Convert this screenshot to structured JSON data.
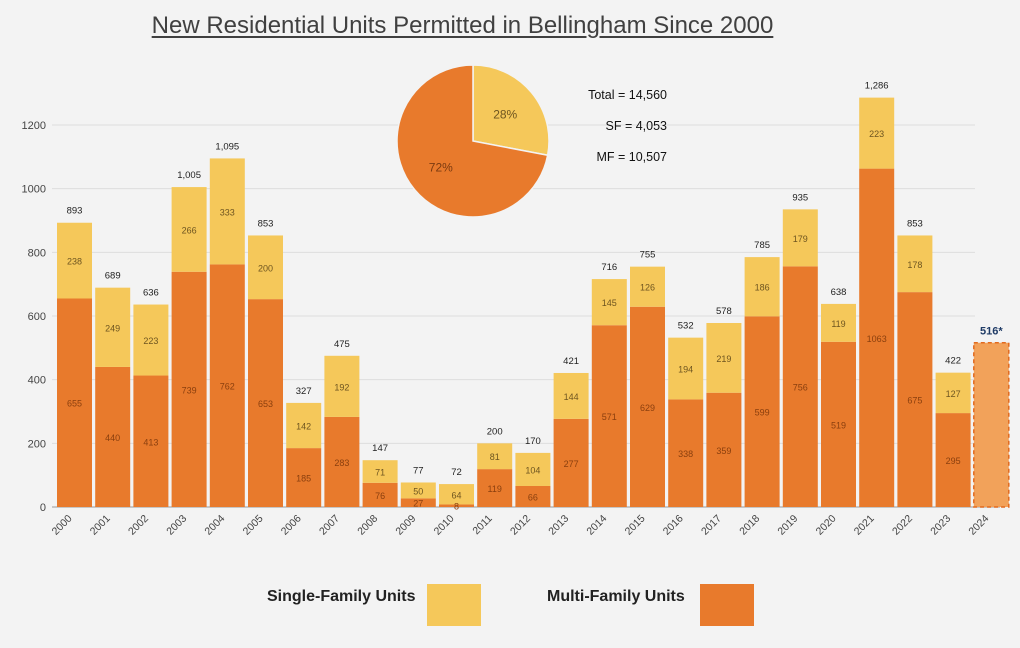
{
  "title": "New Residential Units Permitted in Bellingham Since 2000",
  "stats": {
    "total": "Total = 14,560",
    "sf": "SF = 4,053",
    "mf": "MF = 10,507"
  },
  "legend": {
    "sf_label": "Single-Family Units",
    "mf_label": "Multi-Family Units"
  },
  "colors": {
    "sf": "#F5C85A",
    "mf": "#E87A2C",
    "grid": "#dddddd",
    "axis": "#555555"
  },
  "chart_data": [
    {
      "type": "bar",
      "stacked": true,
      "categories": [
        "2000",
        "2001",
        "2002",
        "2003",
        "2004",
        "2005",
        "2006",
        "2007",
        "2008",
        "2009",
        "2010",
        "2011",
        "2012",
        "2013",
        "2014",
        "2015",
        "2016",
        "2017",
        "2018",
        "2019",
        "2020",
        "2021",
        "2022",
        "2023"
      ],
      "series": [
        {
          "name": "Multi-Family Units",
          "color": "#E87A2C",
          "values": [
            655,
            440,
            413,
            739,
            762,
            653,
            185,
            283,
            76,
            27,
            8,
            119,
            66,
            277,
            571,
            629,
            338,
            359,
            599,
            756,
            519,
            1063,
            675,
            295
          ]
        },
        {
          "name": "Single-Family Units",
          "color": "#F5C85A",
          "values": [
            238,
            249,
            223,
            266,
            333,
            200,
            142,
            192,
            71,
            50,
            64,
            81,
            104,
            144,
            145,
            126,
            194,
            219,
            186,
            179,
            119,
            223,
            178,
            127
          ]
        }
      ],
      "totals": [
        "893",
        "689",
        "636",
        "1,005",
        "1,095",
        "853",
        "327",
        "475",
        "147",
        "77",
        "72",
        "200",
        "170",
        "421",
        "716",
        "755",
        "532",
        "578",
        "785",
        "935",
        "638",
        "1,286",
        "853",
        "422"
      ],
      "projected": {
        "category": "2024",
        "value": 516,
        "label": "516*"
      },
      "ylim": [
        0,
        1300
      ],
      "yticks": [
        0,
        200,
        400,
        600,
        800,
        1000,
        1200
      ],
      "grid": true,
      "legend_position": "bottom"
    },
    {
      "type": "pie",
      "labels": [
        "SF",
        "MF"
      ],
      "values": [
        28,
        72
      ],
      "value_labels": [
        "28%",
        "72%"
      ],
      "colors": [
        "#F5C85A",
        "#E87A2C"
      ]
    }
  ]
}
